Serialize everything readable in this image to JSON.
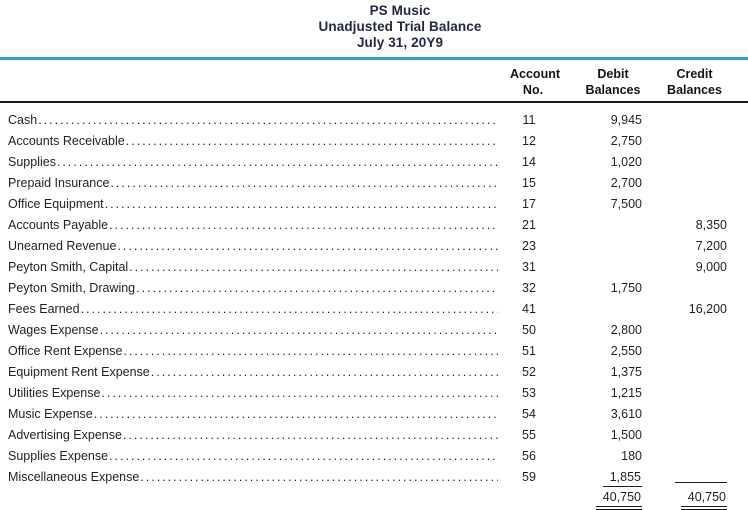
{
  "header": {
    "company": "PS Music",
    "report": "Unadjusted Trial Balance",
    "date": "July 31, 20Y9"
  },
  "columns": {
    "account": {
      "line1": "Account",
      "line2": "No."
    },
    "debit": {
      "line1": "Debit",
      "line2": "Balances"
    },
    "credit": {
      "line1": "Credit",
      "line2": "Balances"
    }
  },
  "rows": [
    {
      "name": "Cash",
      "no": "11",
      "debit": "9,945",
      "credit": ""
    },
    {
      "name": "Accounts Receivable",
      "no": "12",
      "debit": "2,750",
      "credit": ""
    },
    {
      "name": "Supplies",
      "no": "14",
      "debit": "1,020",
      "credit": ""
    },
    {
      "name": "Prepaid Insurance",
      "no": "15",
      "debit": "2,700",
      "credit": ""
    },
    {
      "name": "Office Equipment",
      "no": "17",
      "debit": "7,500",
      "credit": ""
    },
    {
      "name": "Accounts Payable",
      "no": "21",
      "debit": "",
      "credit": "8,350"
    },
    {
      "name": "Unearned Revenue",
      "no": "23",
      "debit": "",
      "credit": "7,200"
    },
    {
      "name": "Peyton Smith, Capital",
      "no": "31",
      "debit": "",
      "credit": "9,000"
    },
    {
      "name": "Peyton Smith, Drawing",
      "no": "32",
      "debit": "1,750",
      "credit": ""
    },
    {
      "name": "Fees Earned",
      "no": "41",
      "debit": "",
      "credit": "16,200"
    },
    {
      "name": "Wages Expense",
      "no": "50",
      "debit": "2,800",
      "credit": ""
    },
    {
      "name": "Office Rent Expense",
      "no": "51",
      "debit": "2,550",
      "credit": ""
    },
    {
      "name": "Equipment Rent Expense",
      "no": "52",
      "debit": "1,375",
      "credit": ""
    },
    {
      "name": "Utilities Expense",
      "no": "53",
      "debit": "1,215",
      "credit": ""
    },
    {
      "name": "Music Expense",
      "no": "54",
      "debit": "3,610",
      "credit": ""
    },
    {
      "name": "Advertising Expense",
      "no": "55",
      "debit": "1,500",
      "credit": ""
    },
    {
      "name": "Supplies Expense",
      "no": "56",
      "debit": "180",
      "credit": ""
    },
    {
      "name": "Miscellaneous Expense",
      "no": "59",
      "debit": "1,855",
      "credit": ""
    }
  ],
  "totals": {
    "debit": "40,750",
    "credit": "40,750"
  },
  "colors": {
    "accent_rule": "#2e9fd6",
    "title_text": "#222741",
    "body_text": "#231f20",
    "header_text": "#141414"
  }
}
